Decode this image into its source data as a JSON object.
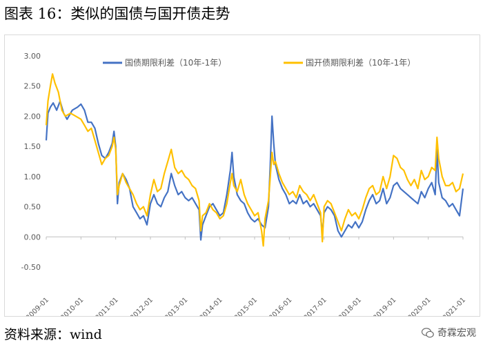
{
  "figure": {
    "title": "图表 16：类似的国债与国开债走势",
    "source": "资料来源：wind",
    "watermark": "奇霖宏观"
  },
  "chart_data": {
    "type": "line",
    "title": "",
    "xlabel": "",
    "ylabel": "",
    "ylim": [
      -0.5,
      3.0
    ],
    "yticks": [
      -0.5,
      0.0,
      0.5,
      1.0,
      1.5,
      2.0,
      2.5,
      3.0
    ],
    "ytick_labels": [
      "-0.50",
      "0.00",
      "0.50",
      "1.00",
      "1.50",
      "2.00",
      "2.50",
      "3.00"
    ],
    "xlim": [
      2009.0,
      2021.0
    ],
    "xticks": [
      2009,
      2010,
      2011,
      2012,
      2013,
      2014,
      2015,
      2016,
      2017,
      2018,
      2019,
      2020,
      2021
    ],
    "xtick_labels": [
      "2009-01",
      "2010-01",
      "2011-01",
      "2012-01",
      "2013-01",
      "2014-01",
      "2015-01",
      "2016-01",
      "2017-01",
      "2018-01",
      "2019-01",
      "2020-01",
      "2021-01"
    ],
    "grid": false,
    "legend_position": "top",
    "series": [
      {
        "name": "国债期限利差（10年-1年）",
        "color": "#4472C4",
        "points": [
          [
            2009.0,
            1.6
          ],
          [
            2009.05,
            2.05
          ],
          [
            2009.12,
            2.15
          ],
          [
            2009.2,
            2.22
          ],
          [
            2009.3,
            2.1
          ],
          [
            2009.4,
            2.25
          ],
          [
            2009.5,
            2.05
          ],
          [
            2009.6,
            1.95
          ],
          [
            2009.75,
            2.1
          ],
          [
            2009.9,
            2.15
          ],
          [
            2010.0,
            2.2
          ],
          [
            2010.1,
            2.1
          ],
          [
            2010.2,
            1.9
          ],
          [
            2010.3,
            1.9
          ],
          [
            2010.4,
            1.8
          ],
          [
            2010.5,
            1.55
          ],
          [
            2010.6,
            1.35
          ],
          [
            2010.7,
            1.3
          ],
          [
            2010.8,
            1.4
          ],
          [
            2010.9,
            1.55
          ],
          [
            2010.95,
            1.75
          ],
          [
            2011.0,
            1.5
          ],
          [
            2011.05,
            0.55
          ],
          [
            2011.1,
            0.9
          ],
          [
            2011.2,
            1.05
          ],
          [
            2011.3,
            0.95
          ],
          [
            2011.4,
            0.8
          ],
          [
            2011.5,
            0.5
          ],
          [
            2011.6,
            0.4
          ],
          [
            2011.7,
            0.3
          ],
          [
            2011.8,
            0.35
          ],
          [
            2011.9,
            0.2
          ],
          [
            2012.0,
            0.55
          ],
          [
            2012.1,
            0.7
          ],
          [
            2012.2,
            0.55
          ],
          [
            2012.3,
            0.5
          ],
          [
            2012.4,
            0.65
          ],
          [
            2012.5,
            0.75
          ],
          [
            2012.6,
            1.05
          ],
          [
            2012.7,
            0.85
          ],
          [
            2012.8,
            0.7
          ],
          [
            2012.9,
            0.75
          ],
          [
            2013.0,
            0.65
          ],
          [
            2013.1,
            0.6
          ],
          [
            2013.2,
            0.65
          ],
          [
            2013.3,
            0.55
          ],
          [
            2013.4,
            0.45
          ],
          [
            2013.45,
            -0.05
          ],
          [
            2013.5,
            0.2
          ],
          [
            2013.6,
            0.35
          ],
          [
            2013.7,
            0.5
          ],
          [
            2013.8,
            0.55
          ],
          [
            2013.9,
            0.45
          ],
          [
            2014.0,
            0.35
          ],
          [
            2014.1,
            0.4
          ],
          [
            2014.2,
            0.7
          ],
          [
            2014.3,
            1.1
          ],
          [
            2014.35,
            1.4
          ],
          [
            2014.4,
            1.0
          ],
          [
            2014.5,
            0.7
          ],
          [
            2014.6,
            0.6
          ],
          [
            2014.7,
            0.55
          ],
          [
            2014.8,
            0.4
          ],
          [
            2014.9,
            0.3
          ],
          [
            2015.0,
            0.25
          ],
          [
            2015.1,
            0.3
          ],
          [
            2015.2,
            0.2
          ],
          [
            2015.3,
            0.15
          ],
          [
            2015.4,
            0.5
          ],
          [
            2015.45,
            1.2
          ],
          [
            2015.5,
            2.0
          ],
          [
            2015.55,
            1.55
          ],
          [
            2015.6,
            1.2
          ],
          [
            2015.7,
            0.95
          ],
          [
            2015.8,
            0.8
          ],
          [
            2015.9,
            0.7
          ],
          [
            2016.0,
            0.55
          ],
          [
            2016.1,
            0.6
          ],
          [
            2016.2,
            0.55
          ],
          [
            2016.3,
            0.7
          ],
          [
            2016.4,
            0.55
          ],
          [
            2016.5,
            0.6
          ],
          [
            2016.6,
            0.5
          ],
          [
            2016.7,
            0.55
          ],
          [
            2016.8,
            0.45
          ],
          [
            2016.9,
            0.35
          ],
          [
            2016.95,
            0.05
          ],
          [
            2017.0,
            0.4
          ],
          [
            2017.1,
            0.5
          ],
          [
            2017.2,
            0.45
          ],
          [
            2017.3,
            0.35
          ],
          [
            2017.4,
            0.1
          ],
          [
            2017.5,
            0.0
          ],
          [
            2017.6,
            0.1
          ],
          [
            2017.7,
            0.2
          ],
          [
            2017.8,
            0.15
          ],
          [
            2017.9,
            0.25
          ],
          [
            2018.0,
            0.15
          ],
          [
            2018.1,
            0.25
          ],
          [
            2018.2,
            0.45
          ],
          [
            2018.3,
            0.6
          ],
          [
            2018.4,
            0.7
          ],
          [
            2018.5,
            0.55
          ],
          [
            2018.6,
            0.6
          ],
          [
            2018.7,
            0.8
          ],
          [
            2018.8,
            0.55
          ],
          [
            2018.9,
            0.65
          ],
          [
            2019.0,
            0.85
          ],
          [
            2019.1,
            0.9
          ],
          [
            2019.2,
            0.8
          ],
          [
            2019.3,
            0.75
          ],
          [
            2019.4,
            0.7
          ],
          [
            2019.5,
            0.65
          ],
          [
            2019.6,
            0.6
          ],
          [
            2019.7,
            0.55
          ],
          [
            2019.8,
            0.75
          ],
          [
            2019.9,
            0.65
          ],
          [
            2020.0,
            0.8
          ],
          [
            2020.1,
            0.9
          ],
          [
            2020.2,
            0.7
          ],
          [
            2020.25,
            1.45
          ],
          [
            2020.3,
            0.9
          ],
          [
            2020.4,
            0.65
          ],
          [
            2020.5,
            0.6
          ],
          [
            2020.6,
            0.5
          ],
          [
            2020.7,
            0.55
          ],
          [
            2020.8,
            0.45
          ],
          [
            2020.9,
            0.35
          ],
          [
            2021.0,
            0.8
          ]
        ]
      },
      {
        "name": "国开债期限利差（10年-1年）",
        "color": "#FFC000",
        "points": [
          [
            2009.0,
            1.85
          ],
          [
            2009.05,
            2.25
          ],
          [
            2009.12,
            2.5
          ],
          [
            2009.18,
            2.7
          ],
          [
            2009.25,
            2.55
          ],
          [
            2009.35,
            2.4
          ],
          [
            2009.45,
            2.1
          ],
          [
            2009.55,
            2.0
          ],
          [
            2009.7,
            2.05
          ],
          [
            2009.85,
            2.0
          ],
          [
            2010.0,
            1.95
          ],
          [
            2010.1,
            1.85
          ],
          [
            2010.2,
            1.75
          ],
          [
            2010.3,
            1.8
          ],
          [
            2010.4,
            1.6
          ],
          [
            2010.5,
            1.4
          ],
          [
            2010.6,
            1.2
          ],
          [
            2010.7,
            1.3
          ],
          [
            2010.8,
            1.35
          ],
          [
            2010.9,
            1.5
          ],
          [
            2010.95,
            1.65
          ],
          [
            2011.0,
            1.45
          ],
          [
            2011.05,
            0.7
          ],
          [
            2011.1,
            0.85
          ],
          [
            2011.2,
            1.05
          ],
          [
            2011.3,
            0.9
          ],
          [
            2011.4,
            0.8
          ],
          [
            2011.5,
            0.7
          ],
          [
            2011.6,
            0.55
          ],
          [
            2011.7,
            0.45
          ],
          [
            2011.8,
            0.5
          ],
          [
            2011.9,
            0.35
          ],
          [
            2012.0,
            0.7
          ],
          [
            2012.1,
            0.95
          ],
          [
            2012.2,
            0.75
          ],
          [
            2012.3,
            0.8
          ],
          [
            2012.4,
            1.05
          ],
          [
            2012.5,
            1.25
          ],
          [
            2012.6,
            1.45
          ],
          [
            2012.7,
            1.15
          ],
          [
            2012.8,
            1.05
          ],
          [
            2012.9,
            1.1
          ],
          [
            2013.0,
            1.0
          ],
          [
            2013.1,
            0.95
          ],
          [
            2013.2,
            0.85
          ],
          [
            2013.3,
            0.8
          ],
          [
            2013.4,
            0.6
          ],
          [
            2013.45,
            0.1
          ],
          [
            2013.5,
            0.35
          ],
          [
            2013.6,
            0.4
          ],
          [
            2013.7,
            0.55
          ],
          [
            2013.8,
            0.45
          ],
          [
            2013.9,
            0.4
          ],
          [
            2014.0,
            0.3
          ],
          [
            2014.1,
            0.35
          ],
          [
            2014.2,
            0.55
          ],
          [
            2014.3,
            0.9
          ],
          [
            2014.35,
            1.05
          ],
          [
            2014.4,
            0.85
          ],
          [
            2014.5,
            0.75
          ],
          [
            2014.6,
            0.95
          ],
          [
            2014.7,
            0.7
          ],
          [
            2014.8,
            0.55
          ],
          [
            2014.9,
            0.45
          ],
          [
            2015.0,
            0.35
          ],
          [
            2015.1,
            0.4
          ],
          [
            2015.2,
            0.1
          ],
          [
            2015.25,
            -0.15
          ],
          [
            2015.3,
            0.3
          ],
          [
            2015.4,
            0.6
          ],
          [
            2015.45,
            1.0
          ],
          [
            2015.5,
            1.4
          ],
          [
            2015.55,
            1.2
          ],
          [
            2015.6,
            1.25
          ],
          [
            2015.7,
            1.05
          ],
          [
            2015.8,
            0.9
          ],
          [
            2015.9,
            0.8
          ],
          [
            2016.0,
            0.7
          ],
          [
            2016.1,
            0.75
          ],
          [
            2016.2,
            0.65
          ],
          [
            2016.3,
            0.85
          ],
          [
            2016.4,
            0.75
          ],
          [
            2016.5,
            0.7
          ],
          [
            2016.6,
            0.6
          ],
          [
            2016.7,
            0.7
          ],
          [
            2016.8,
            0.55
          ],
          [
            2016.9,
            0.4
          ],
          [
            2016.95,
            -0.08
          ],
          [
            2017.0,
            0.5
          ],
          [
            2017.1,
            0.6
          ],
          [
            2017.2,
            0.55
          ],
          [
            2017.3,
            0.4
          ],
          [
            2017.4,
            0.25
          ],
          [
            2017.5,
            0.1
          ],
          [
            2017.6,
            0.3
          ],
          [
            2017.7,
            0.45
          ],
          [
            2017.8,
            0.35
          ],
          [
            2017.9,
            0.4
          ],
          [
            2018.0,
            0.3
          ],
          [
            2018.1,
            0.45
          ],
          [
            2018.2,
            0.65
          ],
          [
            2018.3,
            0.8
          ],
          [
            2018.4,
            0.85
          ],
          [
            2018.5,
            0.7
          ],
          [
            2018.6,
            0.75
          ],
          [
            2018.7,
            1.0
          ],
          [
            2018.8,
            0.8
          ],
          [
            2018.9,
            1.0
          ],
          [
            2019.0,
            1.35
          ],
          [
            2019.1,
            1.3
          ],
          [
            2019.2,
            1.15
          ],
          [
            2019.3,
            1.1
          ],
          [
            2019.4,
            0.95
          ],
          [
            2019.5,
            0.85
          ],
          [
            2019.6,
            0.95
          ],
          [
            2019.7,
            0.8
          ],
          [
            2019.8,
            1.1
          ],
          [
            2019.9,
            0.95
          ],
          [
            2020.0,
            1.0
          ],
          [
            2020.1,
            1.15
          ],
          [
            2020.2,
            1.1
          ],
          [
            2020.25,
            1.65
          ],
          [
            2020.3,
            1.3
          ],
          [
            2020.4,
            1.0
          ],
          [
            2020.5,
            0.85
          ],
          [
            2020.6,
            0.85
          ],
          [
            2020.7,
            0.9
          ],
          [
            2020.8,
            0.75
          ],
          [
            2020.9,
            0.8
          ],
          [
            2021.0,
            1.05
          ]
        ]
      }
    ]
  }
}
